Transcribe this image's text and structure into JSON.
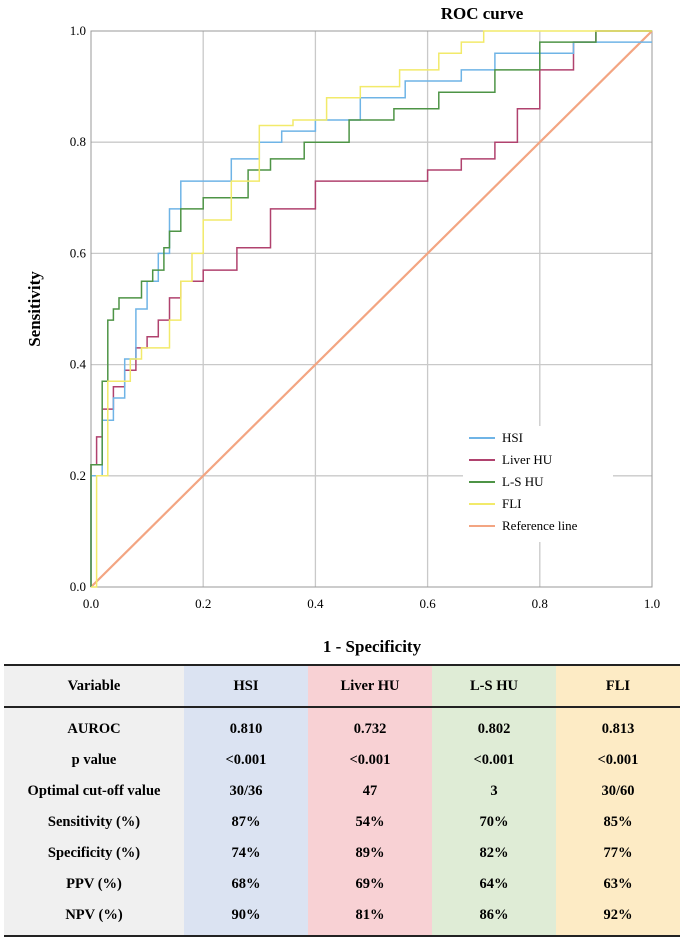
{
  "chart_data": {
    "type": "line",
    "title": "ROC curve",
    "xlabel": "1 - Specificity",
    "ylabel": "Sensitivity",
    "xlim": [
      0,
      1
    ],
    "ylim": [
      0,
      1
    ],
    "grid": true,
    "x_ticks": [
      "0.0",
      "0.2",
      "0.4",
      "0.6",
      "0.8",
      "1.0"
    ],
    "y_ticks": [
      "0.0",
      "0.2",
      "0.4",
      "0.6",
      "0.8",
      "1.0"
    ],
    "legend_position": "bottom-right",
    "series": [
      {
        "name": "HSI",
        "color": "#6fb4e6",
        "x": [
          0,
          0,
          0.02,
          0.02,
          0.04,
          0.04,
          0.06,
          0.06,
          0.08,
          0.08,
          0.1,
          0.1,
          0.12,
          0.12,
          0.14,
          0.14,
          0.16,
          0.16,
          0.18,
          0.18,
          0.25,
          0.25,
          0.3,
          0.3,
          0.34,
          0.34,
          0.4,
          0.4,
          0.48,
          0.48,
          0.56,
          0.56,
          0.66,
          0.66,
          0.72,
          0.72,
          0.86,
          0.86,
          1
        ],
        "y": [
          0,
          0.2,
          0.2,
          0.3,
          0.3,
          0.34,
          0.34,
          0.41,
          0.41,
          0.5,
          0.5,
          0.55,
          0.55,
          0.6,
          0.6,
          0.68,
          0.68,
          0.73,
          0.73,
          0.73,
          0.73,
          0.77,
          0.77,
          0.8,
          0.8,
          0.82,
          0.82,
          0.84,
          0.84,
          0.88,
          0.88,
          0.91,
          0.91,
          0.93,
          0.93,
          0.96,
          0.96,
          0.98,
          0.98
        ]
      },
      {
        "name": "Liver HU",
        "color": "#b0426e",
        "x": [
          0,
          0,
          0.01,
          0.01,
          0.02,
          0.02,
          0.04,
          0.04,
          0.06,
          0.06,
          0.08,
          0.08,
          0.1,
          0.1,
          0.12,
          0.12,
          0.14,
          0.14,
          0.16,
          0.16,
          0.2,
          0.2,
          0.26,
          0.26,
          0.32,
          0.32,
          0.4,
          0.4,
          0.6,
          0.6,
          0.66,
          0.66,
          0.72,
          0.72,
          0.76,
          0.76,
          0.8,
          0.8,
          0.86,
          0.86,
          0.9,
          0.9,
          1
        ],
        "y": [
          0,
          0.22,
          0.22,
          0.27,
          0.27,
          0.32,
          0.32,
          0.36,
          0.36,
          0.39,
          0.39,
          0.43,
          0.43,
          0.45,
          0.45,
          0.48,
          0.48,
          0.52,
          0.52,
          0.55,
          0.55,
          0.57,
          0.57,
          0.61,
          0.61,
          0.68,
          0.68,
          0.73,
          0.73,
          0.75,
          0.75,
          0.77,
          0.77,
          0.8,
          0.8,
          0.86,
          0.86,
          0.93,
          0.93,
          0.98,
          0.98,
          1,
          1
        ]
      },
      {
        "name": "L-S HU",
        "color": "#4e9446",
        "x": [
          0,
          0,
          0.02,
          0.02,
          0.03,
          0.03,
          0.04,
          0.04,
          0.05,
          0.05,
          0.09,
          0.09,
          0.11,
          0.11,
          0.13,
          0.13,
          0.14,
          0.14,
          0.16,
          0.16,
          0.2,
          0.2,
          0.28,
          0.28,
          0.32,
          0.32,
          0.38,
          0.38,
          0.46,
          0.46,
          0.54,
          0.54,
          0.62,
          0.62,
          0.72,
          0.72,
          0.8,
          0.8,
          0.9,
          0.9,
          1
        ],
        "y": [
          0,
          0.22,
          0.22,
          0.37,
          0.37,
          0.48,
          0.48,
          0.5,
          0.5,
          0.52,
          0.52,
          0.55,
          0.55,
          0.57,
          0.57,
          0.61,
          0.61,
          0.64,
          0.64,
          0.68,
          0.68,
          0.7,
          0.7,
          0.75,
          0.75,
          0.77,
          0.77,
          0.8,
          0.8,
          0.84,
          0.84,
          0.86,
          0.86,
          0.89,
          0.89,
          0.93,
          0.93,
          0.98,
          0.98,
          1,
          1
        ]
      },
      {
        "name": "FLI",
        "color": "#f2ea6a",
        "x": [
          0,
          0.01,
          0.01,
          0.03,
          0.03,
          0.07,
          0.07,
          0.09,
          0.09,
          0.14,
          0.14,
          0.16,
          0.16,
          0.18,
          0.18,
          0.2,
          0.2,
          0.25,
          0.25,
          0.3,
          0.3,
          0.36,
          0.36,
          0.42,
          0.42,
          0.48,
          0.48,
          0.55,
          0.55,
          0.62,
          0.62,
          0.66,
          0.66,
          0.7,
          0.7,
          1
        ],
        "y": [
          0,
          0,
          0.2,
          0.2,
          0.37,
          0.37,
          0.41,
          0.41,
          0.43,
          0.43,
          0.48,
          0.48,
          0.55,
          0.55,
          0.6,
          0.6,
          0.66,
          0.66,
          0.73,
          0.73,
          0.83,
          0.83,
          0.84,
          0.84,
          0.88,
          0.88,
          0.9,
          0.9,
          0.93,
          0.93,
          0.96,
          0.96,
          0.98,
          0.98,
          1,
          1
        ]
      },
      {
        "name": "Reference line",
        "color": "#f3a582",
        "x": [
          0,
          1
        ],
        "y": [
          0,
          1
        ]
      }
    ]
  },
  "table": {
    "headers": [
      "Variable",
      "HSI",
      "Liver HU",
      "L-S HU",
      "FLI"
    ],
    "rows": [
      [
        "AUROC",
        "0.810",
        "0.732",
        "0.802",
        "0.813"
      ],
      [
        "p value",
        "<0.001",
        "<0.001",
        "<0.001",
        "<0.001"
      ],
      [
        "Optimal cut-off value",
        "30/36",
        "47",
        "3",
        "30/60"
      ],
      [
        "Sensitivity (%)",
        "87%",
        "54%",
        "70%",
        "85%"
      ],
      [
        "Specificity (%)",
        "74%",
        "89%",
        "82%",
        "77%"
      ],
      [
        "PPV (%)",
        "68%",
        "69%",
        "64%",
        "63%"
      ],
      [
        "NPV (%)",
        "90%",
        "81%",
        "86%",
        "92%"
      ]
    ]
  }
}
